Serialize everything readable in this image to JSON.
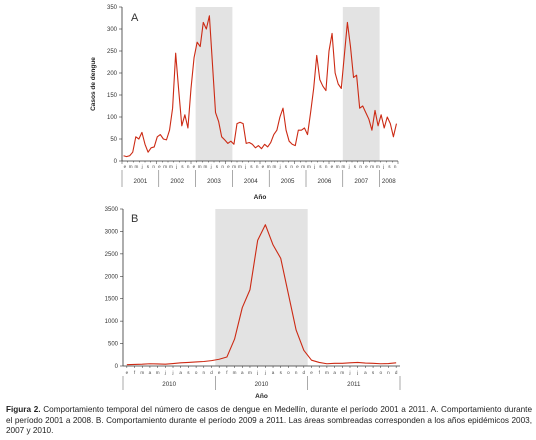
{
  "chart_data": [
    {
      "type": "line",
      "panel_label": "A",
      "ylabel": "Casos de dengue",
      "xlabel": "Año",
      "ylim": [
        0,
        350
      ],
      "yticks": [
        0,
        50,
        100,
        150,
        200,
        250,
        300,
        350
      ],
      "years": [
        "2001",
        "2002",
        "2003",
        "2004",
        "2005",
        "2006",
        "2007",
        "2008"
      ],
      "month_letters": [
        "e",
        "m",
        "m",
        "j",
        "s",
        "n",
        "e",
        "m",
        "m",
        "j",
        "s",
        "n",
        "e",
        "m",
        "m",
        "j",
        "s",
        "n",
        "e",
        "m",
        "m",
        "j",
        "s",
        "n",
        "e",
        "m",
        "m",
        "j",
        "s",
        "n",
        "e",
        "m",
        "m",
        "j",
        "s",
        "n",
        "e",
        "m",
        "m",
        "j",
        "s",
        "n",
        "e",
        "m",
        "m",
        "j",
        "s",
        "n"
      ],
      "shaded_years": [
        "2003",
        "2007"
      ],
      "line_color": "#cc2a14",
      "shade_color": "#e3e3e3",
      "x_start": "2001-01",
      "x_end": "2008-06",
      "series": [
        {
          "x": [
            "2001-01",
            "2001-02",
            "2001-03",
            "2001-04",
            "2001-05",
            "2001-06",
            "2001-07",
            "2001-08",
            "2001-09",
            "2001-10",
            "2001-11",
            "2001-12",
            "2002-01",
            "2002-02",
            "2002-03",
            "2002-04",
            "2002-05",
            "2002-06",
            "2002-07",
            "2002-08",
            "2002-09",
            "2002-10",
            "2002-11",
            "2002-12",
            "2003-01",
            "2003-02",
            "2003-03",
            "2003-04",
            "2003-05",
            "2003-06",
            "2003-07",
            "2003-08",
            "2003-09",
            "2003-10",
            "2003-11",
            "2003-12",
            "2004-01",
            "2004-02",
            "2004-03",
            "2004-04",
            "2004-05",
            "2004-06",
            "2004-07",
            "2004-08",
            "2004-09",
            "2004-10",
            "2004-11",
            "2004-12",
            "2005-01",
            "2005-02",
            "2005-03",
            "2005-04",
            "2005-05",
            "2005-06",
            "2005-07",
            "2005-08",
            "2005-09",
            "2005-10",
            "2005-11",
            "2005-12",
            "2006-01",
            "2006-02",
            "2006-03",
            "2006-04",
            "2006-05",
            "2006-06",
            "2006-07",
            "2006-08",
            "2006-09",
            "2006-10",
            "2006-11",
            "2006-12",
            "2007-01",
            "2007-02",
            "2007-03",
            "2007-04",
            "2007-05",
            "2007-06",
            "2007-07",
            "2007-08",
            "2007-09",
            "2007-10",
            "2007-11",
            "2007-12",
            "2008-01",
            "2008-02",
            "2008-03",
            "2008-04",
            "2008-05",
            "2008-06"
          ],
          "y": [
            12,
            10,
            12,
            20,
            55,
            50,
            65,
            38,
            20,
            30,
            32,
            55,
            60,
            50,
            48,
            70,
            120,
            245,
            160,
            80,
            105,
            75,
            165,
            235,
            270,
            260,
            315,
            300,
            330,
            220,
            110,
            90,
            55,
            48,
            40,
            45,
            38,
            85,
            88,
            85,
            40,
            42,
            38,
            30,
            35,
            28,
            38,
            32,
            42,
            60,
            70,
            100,
            120,
            70,
            45,
            38,
            35,
            70,
            70,
            75,
            60,
            110,
            165,
            240,
            185,
            170,
            160,
            250,
            290,
            200,
            175,
            165,
            240,
            315,
            260,
            190,
            195,
            120,
            125,
            110,
            95,
            70,
            115,
            80,
            105,
            75,
            100,
            85,
            55,
            85
          ]
        }
      ]
    },
    {
      "type": "line",
      "panel_label": "B",
      "ylim": [
        0,
        3500
      ],
      "yticks": [
        0,
        500,
        1000,
        1500,
        2000,
        2500,
        3000,
        3500
      ],
      "xlabel": "Año",
      "years": [
        "2010",
        "2010",
        "2011"
      ],
      "month_letters": [
        "e",
        "f",
        "m",
        "a",
        "m",
        "j",
        "j",
        "a",
        "s",
        "o",
        "n",
        "d",
        "e",
        "f",
        "m",
        "a",
        "m",
        "j",
        "j",
        "a",
        "s",
        "o",
        "n",
        "d",
        "e",
        "f",
        "m",
        "a",
        "m",
        "j",
        "j",
        "a",
        "s",
        "o",
        "n",
        "d"
      ],
      "shaded_months": [
        "e",
        "d"
      ],
      "line_color": "#cc2a14",
      "shade_color": "#e3e3e3",
      "series": [
        {
          "x": [
            1,
            2,
            3,
            4,
            5,
            6,
            7,
            8,
            9,
            10,
            11,
            12,
            13,
            14,
            15,
            16,
            17,
            18,
            19,
            20,
            21,
            22,
            23,
            24,
            25,
            26,
            27,
            28,
            29,
            30,
            31,
            32,
            33,
            34,
            35,
            36
          ],
          "y": [
            30,
            35,
            40,
            50,
            45,
            40,
            55,
            70,
            80,
            90,
            100,
            120,
            150,
            200,
            600,
            1300,
            1700,
            2800,
            3150,
            2700,
            2400,
            1600,
            800,
            350,
            130,
            80,
            50,
            60,
            60,
            70,
            80,
            65,
            60,
            50,
            55,
            70
          ]
        }
      ]
    }
  ],
  "caption": {
    "label": "Figura 2.",
    "text": " Comportamiento temporal del número de casos de dengue en Medellín, durante el período 2001 a 2011. A. Comportamiento durante el período 2001 a 2008. B. Comportamiento durante el período 2009 a 2011. Las áreas sombreadas corresponden a los años epidémicos 2003, 2007 y 2010."
  }
}
